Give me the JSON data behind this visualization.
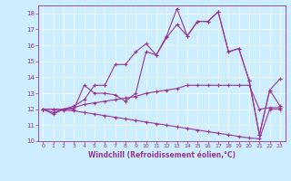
{
  "xlabel": "Windchill (Refroidissement éolien,°C)",
  "bg_color": "#cceeff",
  "line_color": "#993399",
  "grid_color": "#ffffff",
  "xlim": [
    -0.5,
    23.5
  ],
  "ylim": [
    10,
    18.5
  ],
  "yticks": [
    10,
    11,
    12,
    13,
    14,
    15,
    16,
    17,
    18
  ],
  "xticks": [
    0,
    1,
    2,
    3,
    4,
    5,
    6,
    7,
    8,
    9,
    10,
    11,
    12,
    13,
    14,
    15,
    16,
    17,
    18,
    19,
    20,
    21,
    22,
    23
  ],
  "line1": [
    12.0,
    11.7,
    12.0,
    12.0,
    13.5,
    13.0,
    13.0,
    12.9,
    12.5,
    13.0,
    15.6,
    15.4,
    16.6,
    18.3,
    16.6,
    17.5,
    17.5,
    18.1,
    15.6,
    15.8,
    13.8,
    10.4,
    13.2,
    13.9
  ],
  "line2": [
    12.0,
    11.8,
    12.0,
    12.2,
    12.6,
    13.5,
    13.5,
    14.8,
    14.8,
    15.6,
    16.1,
    15.4,
    16.5,
    17.3,
    16.6,
    17.5,
    17.5,
    18.1,
    15.6,
    15.8,
    13.8,
    10.4,
    13.2,
    12.2
  ],
  "line3": [
    12.0,
    12.0,
    12.0,
    12.1,
    12.3,
    12.4,
    12.5,
    12.6,
    12.7,
    12.8,
    13.0,
    13.1,
    13.2,
    13.3,
    13.5,
    13.5,
    13.5,
    13.5,
    13.5,
    13.5,
    13.5,
    12.0,
    12.1,
    12.1
  ],
  "line4": [
    12.0,
    12.0,
    11.95,
    11.9,
    11.8,
    11.7,
    11.6,
    11.5,
    11.4,
    11.3,
    11.2,
    11.1,
    11.0,
    10.9,
    10.8,
    10.7,
    10.6,
    10.5,
    10.4,
    10.3,
    10.2,
    10.15,
    12.0,
    12.0
  ]
}
